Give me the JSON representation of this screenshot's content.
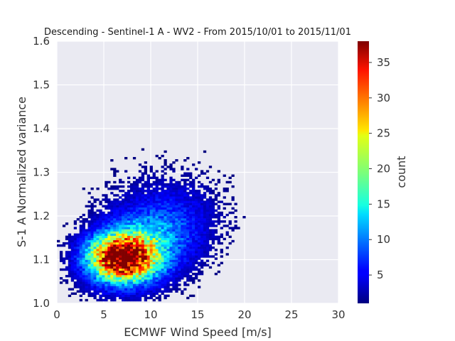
{
  "chart_data": {
    "type": "heatmap",
    "title": "Descending - Sentinel-1 A - WV2 - From 2015/10/01 to 2015/11/01",
    "xlabel": "ECMWF Wind Speed [m/s]",
    "ylabel": "S-1 A Normalized variance",
    "xlim": [
      0,
      30
    ],
    "ylim": [
      1.0,
      1.6
    ],
    "xticks": [
      "0",
      "5",
      "10",
      "15",
      "20",
      "25",
      "30"
    ],
    "yticks": [
      "1.0",
      "1.1",
      "1.2",
      "1.3",
      "1.4",
      "1.5",
      "1.6"
    ],
    "colorbar": {
      "label": "count",
      "colormap": "jet",
      "range": [
        1,
        38
      ],
      "ticks": [
        "5",
        "10",
        "15",
        "20",
        "25",
        "30",
        "35"
      ]
    },
    "grid": true,
    "background_color": "#eaeaf2",
    "density_summary": {
      "peak_wind_speed": 7,
      "peak_normalized_variance": 1.105,
      "peak_count": 38
    }
  }
}
